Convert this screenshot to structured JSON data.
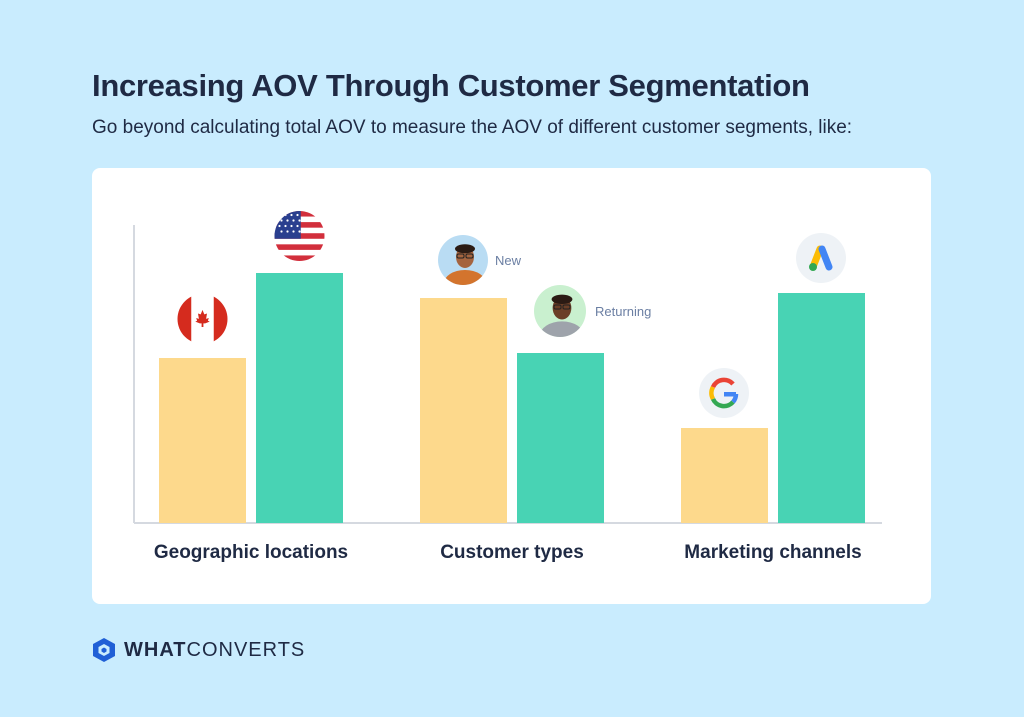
{
  "header": {
    "title": "Increasing AOV Through Customer Segmentation",
    "subtitle": "Go beyond calculating total AOV to measure the AOV of different customer segments, like:"
  },
  "chart_data": {
    "type": "bar",
    "categories": [
      "Geographic locations",
      "Customer types",
      "Marketing channels"
    ],
    "series": [
      {
        "color": "#fdd98c",
        "values": [
          33,
          45,
          19
        ],
        "icons": [
          "canada-flag-icon",
          "new-customer-avatar-icon",
          "google-logo-icon"
        ]
      },
      {
        "color": "#48d3b4",
        "values": [
          50,
          34,
          46
        ],
        "icons": [
          "usa-flag-icon",
          "returning-customer-avatar-icon",
          "google-ads-logo-icon"
        ]
      }
    ],
    "annotations": {
      "new": "New",
      "returning": "Returning"
    },
    "ylim": [
      0,
      60
    ],
    "grid": false
  },
  "brand": {
    "bold": "WHAT",
    "regular": "CONVERTS"
  }
}
